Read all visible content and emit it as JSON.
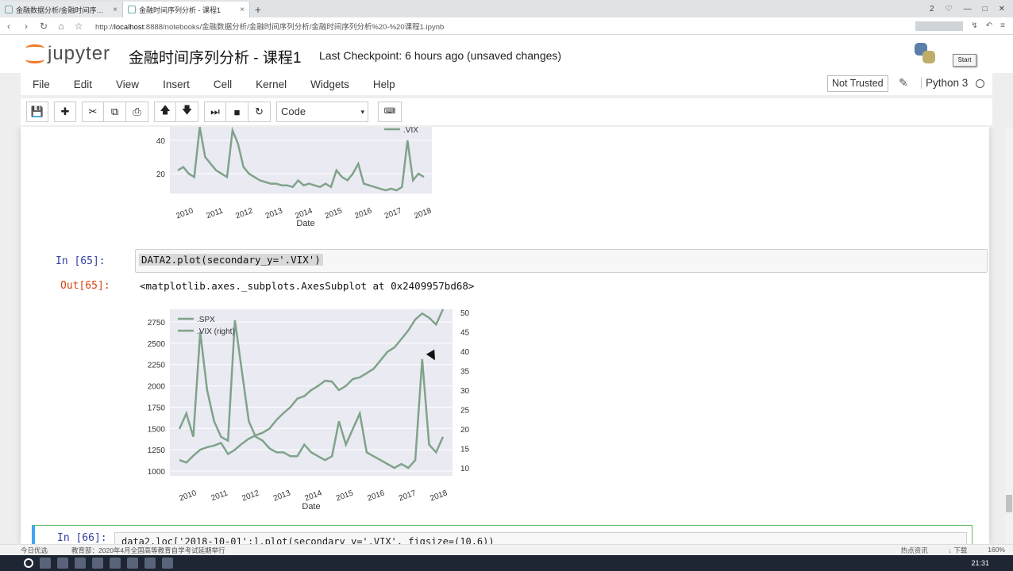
{
  "browser": {
    "tabs": [
      {
        "label": "金融数据分析/金融时间序列分析",
        "close": "×"
      },
      {
        "label": "金融时间序列分析 - 课程1",
        "close": "×"
      }
    ],
    "new_tab": "+",
    "url_prefix": "http://",
    "url_host": "localhost",
    "url_rest": ":8888/notebooks/金融数据分析/金融时间序列分析/金融时间序列分析%20-%20课程1.ipynb",
    "win_controls": [
      "2",
      "♡",
      "—",
      "□",
      "✕"
    ]
  },
  "header": {
    "logo_text": "jupyter",
    "notebook_title": "金融时间序列分析 - 课程1",
    "checkpoint": "Last Checkpoint: 6 hours ago (unsaved changes)",
    "start_button": "Start"
  },
  "menu": {
    "items": [
      "File",
      "Edit",
      "View",
      "Insert",
      "Cell",
      "Kernel",
      "Widgets",
      "Help"
    ],
    "trusted": "Not Trusted",
    "kernel": "Python 3"
  },
  "toolbar": {
    "cell_type": "Code",
    "caret": "▾",
    "keyboard": "⌨"
  },
  "cells": {
    "in65_prompt": "In [65]:",
    "in65_code": "DATA2.plot(secondary_y='.VIX')",
    "out65_prompt": "Out[65]:",
    "out65_text": "<matplotlib.axes._subplots.AxesSubplot at 0x2409957bd68>",
    "in66_prompt": "In [66]:",
    "in66_code": "data2.loc['2018-10-01':].plot(secondary_y='.VIX', figsize=(10,6))"
  },
  "chart_data": [
    {
      "type": "line",
      "title": "",
      "xlabel": "Date",
      "ylabel": "",
      "x_ticks": [
        "2010",
        "2011",
        "2012",
        "2013",
        "2014",
        "2015",
        "2016",
        "2017",
        "2018"
      ],
      "y_ticks_visible": [
        20,
        40
      ],
      "legend": [
        ".VIX"
      ],
      "legend_position": "top-right",
      "series": [
        {
          "name": ".VIX",
          "values": [
            22,
            24,
            20,
            18,
            48,
            30,
            26,
            22,
            20,
            18,
            46,
            38,
            24,
            20,
            18,
            16,
            15,
            14,
            14,
            13,
            13,
            12,
            16,
            13,
            14,
            13,
            12,
            14,
            12,
            22,
            18,
            16,
            20,
            26,
            14,
            13,
            12,
            11,
            10,
            11,
            10,
            12,
            40,
            16,
            20,
            18
          ]
        }
      ]
    },
    {
      "type": "line",
      "title": "",
      "xlabel": "Date",
      "x_ticks": [
        "2010",
        "2011",
        "2012",
        "2013",
        "2014",
        "2015",
        "2016",
        "2017",
        "2018"
      ],
      "y_left_ticks": [
        1000,
        1250,
        1500,
        1750,
        2000,
        2250,
        2500,
        2750
      ],
      "y_right_ticks": [
        10,
        15,
        20,
        25,
        30,
        35,
        40,
        45,
        50
      ],
      "legend": [
        ".SPX",
        ".VIX (right)"
      ],
      "legend_position": "top-left",
      "grid": true,
      "series": [
        {
          "name": ".SPX",
          "axis": "left",
          "values": [
            1130,
            1100,
            1180,
            1250,
            1280,
            1300,
            1330,
            1200,
            1250,
            1320,
            1380,
            1420,
            1450,
            1500,
            1600,
            1680,
            1750,
            1850,
            1880,
            1950,
            2000,
            2060,
            2050,
            1950,
            2000,
            2080,
            2100,
            2150,
            2200,
            2300,
            2400,
            2450,
            2550,
            2650,
            2780,
            2850,
            2800,
            2720,
            2900
          ]
        },
        {
          "name": ".VIX (right)",
          "axis": "right",
          "values": [
            20,
            24,
            18,
            45,
            30,
            22,
            18,
            17,
            48,
            35,
            22,
            18,
            17,
            15,
            14,
            14,
            13,
            13,
            16,
            14,
            13,
            12,
            13,
            22,
            16,
            20,
            24,
            14,
            13,
            12,
            11,
            10,
            11,
            10,
            12,
            38,
            16,
            14,
            18
          ]
        }
      ]
    }
  ],
  "status": {
    "left": "今日优选",
    "news": "教育部：2020年4月全国高等教育自学考试延期举行",
    "right_items": [
      "热点资讯",
      "↓ 下载",
      "160%"
    ]
  },
  "taskbar": {
    "clock": "21:31"
  }
}
